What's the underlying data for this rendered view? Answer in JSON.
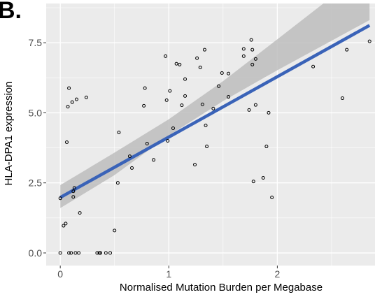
{
  "panel_label": "B.",
  "chart_data": {
    "type": "scatter",
    "xlabel": "Normalised Mutation Burden per Megabase",
    "ylabel": "HLA-DPA1 expression",
    "xlim": [
      -0.13,
      2.9
    ],
    "ylim": [
      -0.45,
      8.9
    ],
    "x_ticks": [
      {
        "value": 0,
        "label": "0"
      },
      {
        "value": 1,
        "label": "1"
      },
      {
        "value": 2,
        "label": "2"
      }
    ],
    "y_ticks": [
      {
        "value": 0,
        "label": "0.0"
      },
      {
        "value": 2.5,
        "label": "2.5"
      },
      {
        "value": 5,
        "label": "5.0"
      },
      {
        "value": 7.5,
        "label": "7.5"
      }
    ],
    "grid": true,
    "colors": {
      "panel_background": "#ebebeb",
      "grid": "#ffffff",
      "point_stroke": "#000000",
      "fit_line": "#3a63b8",
      "confidence_band": "#bdbdbd"
    },
    "points": [
      {
        "x": 0.0,
        "y": 1.95
      },
      {
        "x": 0.0,
        "y": 0.0
      },
      {
        "x": 0.03,
        "y": 0.97
      },
      {
        "x": 0.05,
        "y": 1.05
      },
      {
        "x": 0.06,
        "y": 3.95
      },
      {
        "x": 0.07,
        "y": 5.22
      },
      {
        "x": 0.08,
        "y": 5.88
      },
      {
        "x": 0.08,
        "y": 0.0
      },
      {
        "x": 0.1,
        "y": 0.0
      },
      {
        "x": 0.11,
        "y": 5.38
      },
      {
        "x": 0.12,
        "y": 2.0
      },
      {
        "x": 0.12,
        "y": 2.2
      },
      {
        "x": 0.13,
        "y": 2.32
      },
      {
        "x": 0.14,
        "y": 0.0
      },
      {
        "x": 0.15,
        "y": 5.48
      },
      {
        "x": 0.17,
        "y": 0.0
      },
      {
        "x": 0.18,
        "y": 1.43
      },
      {
        "x": 0.24,
        "y": 5.55
      },
      {
        "x": 0.34,
        "y": 0.0
      },
      {
        "x": 0.36,
        "y": 0.0
      },
      {
        "x": 0.37,
        "y": 0.0
      },
      {
        "x": 0.42,
        "y": 0.0
      },
      {
        "x": 0.46,
        "y": 0.0
      },
      {
        "x": 0.5,
        "y": 0.8
      },
      {
        "x": 0.53,
        "y": 2.5
      },
      {
        "x": 0.54,
        "y": 4.3
      },
      {
        "x": 0.64,
        "y": 3.45
      },
      {
        "x": 0.66,
        "y": 3.03
      },
      {
        "x": 0.77,
        "y": 5.25
      },
      {
        "x": 0.78,
        "y": 5.88
      },
      {
        "x": 0.8,
        "y": 3.9
      },
      {
        "x": 0.86,
        "y": 3.32
      },
      {
        "x": 0.97,
        "y": 7.02
      },
      {
        "x": 0.98,
        "y": 5.45
      },
      {
        "x": 0.99,
        "y": 4.0
      },
      {
        "x": 1.01,
        "y": 5.78
      },
      {
        "x": 1.04,
        "y": 4.45
      },
      {
        "x": 1.07,
        "y": 6.75
      },
      {
        "x": 1.1,
        "y": 6.72
      },
      {
        "x": 1.12,
        "y": 5.27
      },
      {
        "x": 1.15,
        "y": 5.6
      },
      {
        "x": 1.15,
        "y": 6.2
      },
      {
        "x": 1.24,
        "y": 3.15
      },
      {
        "x": 1.26,
        "y": 6.95
      },
      {
        "x": 1.29,
        "y": 6.62
      },
      {
        "x": 1.31,
        "y": 5.3
      },
      {
        "x": 1.33,
        "y": 7.25
      },
      {
        "x": 1.34,
        "y": 4.55
      },
      {
        "x": 1.35,
        "y": 3.8
      },
      {
        "x": 1.41,
        "y": 5.15
      },
      {
        "x": 1.46,
        "y": 5.95
      },
      {
        "x": 1.49,
        "y": 6.42
      },
      {
        "x": 1.55,
        "y": 6.4
      },
      {
        "x": 1.55,
        "y": 5.57
      },
      {
        "x": 1.69,
        "y": 7.28
      },
      {
        "x": 1.69,
        "y": 7.02
      },
      {
        "x": 1.74,
        "y": 5.1
      },
      {
        "x": 1.76,
        "y": 7.6
      },
      {
        "x": 1.77,
        "y": 7.25
      },
      {
        "x": 1.77,
        "y": 6.72
      },
      {
        "x": 1.78,
        "y": 2.55
      },
      {
        "x": 1.8,
        "y": 5.28
      },
      {
        "x": 1.8,
        "y": 6.92
      },
      {
        "x": 1.87,
        "y": 2.68
      },
      {
        "x": 1.9,
        "y": 3.8
      },
      {
        "x": 1.92,
        "y": 5.0
      },
      {
        "x": 1.95,
        "y": 1.98
      },
      {
        "x": 2.33,
        "y": 6.65
      },
      {
        "x": 2.6,
        "y": 5.52
      },
      {
        "x": 2.64,
        "y": 7.25
      },
      {
        "x": 2.85,
        "y": 7.55
      }
    ],
    "fit_line": {
      "x": [
        0.0,
        2.85
      ],
      "y": [
        1.98,
        8.12
      ]
    },
    "confidence_band": {
      "x": [
        0.0,
        0.5,
        1.0,
        1.5,
        2.0,
        2.5,
        2.85
      ],
      "upper": [
        2.42,
        3.58,
        4.77,
        6.13,
        7.62,
        9.13,
        10.22
      ],
      "lower": [
        1.6,
        2.78,
        4.19,
        5.42,
        6.52,
        7.57,
        8.31
      ]
    }
  }
}
